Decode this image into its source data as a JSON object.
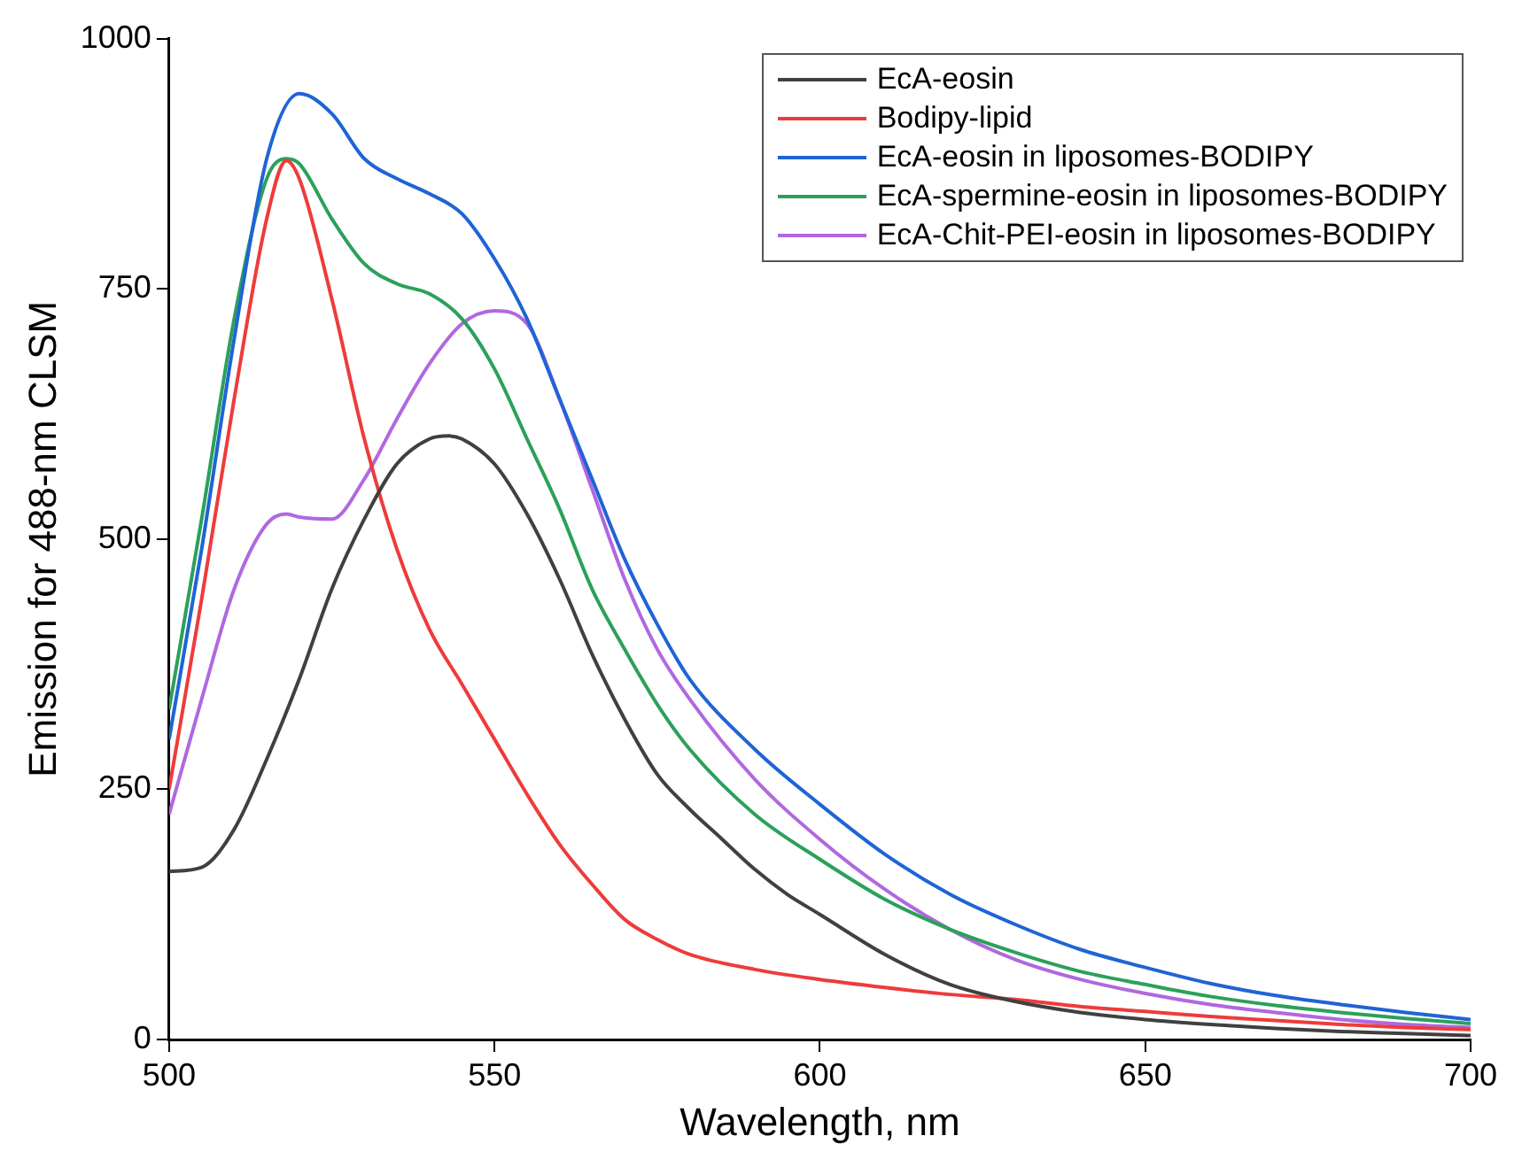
{
  "chart_data": {
    "type": "line",
    "xlabel": "Wavelength, nm",
    "ylabel": "Emission for 488-nm CLSM",
    "xlim": [
      500,
      700
    ],
    "xticks": [
      500,
      550,
      600,
      650,
      700
    ],
    "ylim": [
      0,
      1000
    ],
    "yticks": [
      0,
      250,
      500,
      750,
      1000
    ],
    "grid": false,
    "legend": "top right",
    "marker": "none",
    "line_style": "solid",
    "series": [
      {
        "name": "EcA-eosin",
        "color": "#404040",
        "x": [
          500,
          505,
          510,
          515,
          520,
          525,
          530,
          535,
          540,
          543,
          545,
          550,
          555,
          560,
          565,
          570,
          575,
          580,
          585,
          590,
          595,
          600,
          610,
          620,
          630,
          640,
          650,
          660,
          670,
          680,
          690,
          700
        ],
        "values": [
          168,
          172,
          210,
          280,
          360,
          450,
          520,
          575,
          600,
          603,
          600,
          575,
          525,
          460,
          385,
          320,
          265,
          230,
          200,
          170,
          145,
          125,
          85,
          55,
          38,
          27,
          20,
          15,
          11,
          8,
          6,
          4
        ]
      },
      {
        "name": "Bodipy-lipid",
        "color": "#ee3b3b",
        "x": [
          500,
          505,
          510,
          515,
          518,
          520,
          525,
          530,
          535,
          540,
          545,
          550,
          555,
          560,
          565,
          570,
          575,
          580,
          590,
          600,
          610,
          620,
          630,
          640,
          650,
          660,
          670,
          680,
          690,
          700
        ],
        "values": [
          250,
          440,
          640,
          820,
          878,
          860,
          740,
          600,
          490,
          410,
          355,
          300,
          245,
          195,
          155,
          120,
          100,
          85,
          70,
          60,
          52,
          45,
          40,
          33,
          28,
          23,
          19,
          15,
          12,
          10
        ]
      },
      {
        "name": "EcA-eosin in liposomes-BODIPY",
        "color": "#1f64d6",
        "x": [
          500,
          505,
          510,
          515,
          520,
          525,
          530,
          535,
          540,
          545,
          550,
          555,
          560,
          565,
          570,
          575,
          580,
          590,
          600,
          610,
          620,
          630,
          640,
          650,
          660,
          670,
          680,
          690,
          700
        ],
        "values": [
          300,
          490,
          700,
          880,
          945,
          925,
          880,
          860,
          845,
          825,
          780,
          720,
          640,
          560,
          480,
          415,
          360,
          290,
          235,
          185,
          145,
          115,
          90,
          72,
          56,
          44,
          35,
          27,
          20
        ]
      },
      {
        "name": "EcA-spermine-eosin in liposomes-BODIPY",
        "color": "#2ca05a",
        "x": [
          500,
          505,
          510,
          515,
          518,
          520,
          525,
          530,
          535,
          540,
          545,
          550,
          555,
          560,
          565,
          570,
          575,
          580,
          590,
          600,
          610,
          620,
          630,
          640,
          650,
          660,
          670,
          680,
          690,
          700
        ],
        "values": [
          330,
          520,
          720,
          860,
          880,
          875,
          820,
          775,
          755,
          745,
          720,
          670,
          600,
          530,
          450,
          390,
          335,
          290,
          225,
          180,
          140,
          110,
          87,
          68,
          55,
          43,
          34,
          27,
          21,
          16
        ]
      },
      {
        "name": "EcA-Chit-PEI-eosin in liposomes-BODIPY",
        "color": "#b068e0",
        "x": [
          500,
          505,
          510,
          515,
          518,
          520,
          525,
          530,
          535,
          540,
          545,
          550,
          555,
          560,
          565,
          570,
          575,
          580,
          590,
          600,
          610,
          620,
          630,
          640,
          650,
          660,
          670,
          680,
          690,
          700
        ],
        "values": [
          225,
          340,
          450,
          515,
          525,
          522,
          520,
          560,
          620,
          675,
          715,
          728,
          715,
          640,
          550,
          460,
          390,
          340,
          260,
          200,
          150,
          110,
          80,
          60,
          46,
          35,
          27,
          20,
          15,
          12
        ]
      }
    ]
  }
}
